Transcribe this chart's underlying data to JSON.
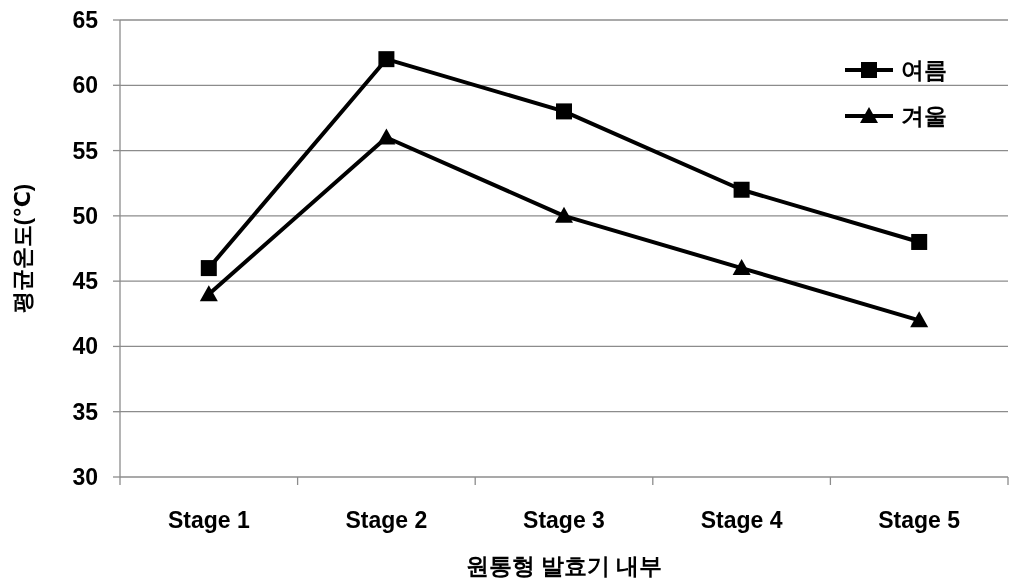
{
  "chart_data": {
    "type": "line",
    "xlabel": "원통형 발효기 내부",
    "ylabel": "평균온도(℃)",
    "categories": [
      "Stage 1",
      "Stage 2",
      "Stage 3",
      "Stage 4",
      "Stage 5"
    ],
    "series": [
      {
        "name": "여름",
        "color": "#000000",
        "marker": "square",
        "values": [
          46,
          62,
          58,
          52,
          48
        ]
      },
      {
        "name": "겨울",
        "color": "#000000",
        "marker": "triangle",
        "values": [
          44,
          56,
          50,
          46,
          42
        ]
      }
    ],
    "ylim": [
      30,
      65
    ],
    "yticks": [
      30,
      35,
      40,
      45,
      50,
      55,
      60,
      65
    ],
    "grid": "y",
    "legend": "top right",
    "line_style": "solid"
  }
}
